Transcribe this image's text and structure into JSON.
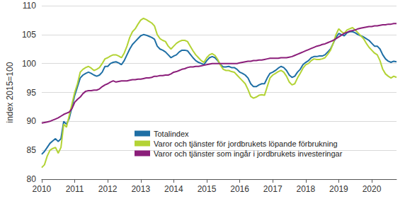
{
  "chart_data": {
    "type": "line",
    "y_label": "index 2015=100",
    "categories": [
      "2010",
      null,
      null,
      null,
      null,
      null,
      null,
      null,
      null,
      null,
      null,
      null,
      "2011",
      null,
      null,
      null,
      null,
      null,
      null,
      null,
      null,
      null,
      null,
      null,
      "2012",
      null,
      null,
      null,
      null,
      null,
      null,
      null,
      null,
      null,
      null,
      null,
      "2013",
      null,
      null,
      null,
      null,
      null,
      null,
      null,
      null,
      null,
      null,
      null,
      "2014",
      null,
      null,
      null,
      null,
      null,
      null,
      null,
      null,
      null,
      null,
      null,
      "2015",
      null,
      null,
      null,
      null,
      null,
      null,
      null,
      null,
      null,
      null,
      null,
      "2016",
      null,
      null,
      null,
      null,
      null,
      null,
      null,
      null,
      null,
      null,
      null,
      "2017",
      null,
      null,
      null,
      null,
      null,
      null,
      null,
      null,
      null,
      null,
      null,
      "2018",
      null,
      null,
      null,
      null,
      null,
      null,
      null,
      null,
      null,
      null,
      null,
      "2019",
      null,
      null,
      null,
      null,
      null,
      null,
      null,
      null,
      null,
      null,
      null,
      "2020",
      null,
      null,
      null,
      null,
      null,
      null,
      null,
      null,
      null
    ],
    "series": [
      {
        "name": "Totalindex",
        "color": "#1f6fa5",
        "values": [
          84.3,
          84.8,
          85.5,
          86.2,
          86.6,
          87.0,
          86.5,
          87.0,
          90.0,
          89.5,
          90.5,
          92.5,
          94.5,
          96,
          97.5,
          98,
          98.3,
          98.5,
          98.3,
          98,
          97.8,
          98,
          98.5,
          99.5,
          99.5,
          100,
          100.2,
          100.3,
          100.1,
          99.8,
          100.5,
          101.5,
          102.5,
          103.3,
          103.8,
          104.3,
          104.8,
          105,
          104.9,
          104.7,
          104.5,
          104.2,
          103,
          102.5,
          102.3,
          102,
          101.5,
          101,
          101.3,
          101.5,
          102,
          102.3,
          102.3,
          102.2,
          101.6,
          101,
          100.5,
          100.2,
          100,
          99.8,
          100.5,
          101,
          101.2,
          101,
          100.5,
          99.8,
          99.4,
          99.4,
          99.5,
          99.3,
          99.3,
          99.0,
          98.5,
          98.3,
          98,
          97.5,
          96.5,
          96,
          96,
          96.3,
          96.5,
          96.5,
          97.5,
          98.3,
          98.5,
          98.8,
          99.2,
          99.5,
          99.3,
          98.8,
          98,
          97.6,
          97.8,
          98.5,
          99,
          99.8,
          100.2,
          100.5,
          101,
          101.2,
          101.2,
          101.3,
          101.3,
          101.5,
          102,
          102.5,
          103.5,
          104.5,
          105.2,
          105,
          104.8,
          105.3,
          105.5,
          105.5,
          105.3,
          105,
          104.8,
          104.6,
          104.3,
          104.0,
          103.5,
          103.0,
          103.0,
          102.5,
          101.5,
          100.8,
          100.4,
          100.2,
          100.4,
          100.3
        ]
      },
      {
        "name": "Varor och tjänster för jordbrukets löpande förbrukning",
        "color": "#b3d335",
        "values": [
          82,
          82.5,
          84,
          85,
          85.3,
          85.5,
          84.5,
          85.5,
          89.5,
          89,
          91,
          93,
          95,
          96.5,
          98.5,
          99,
          99.3,
          99.5,
          99.2,
          98.8,
          99,
          99.3,
          100,
          100.8,
          101,
          101.3,
          101.5,
          101.5,
          101.3,
          101,
          101.8,
          103,
          104.5,
          105.5,
          106,
          106.8,
          107.5,
          107.8,
          107.6,
          107.3,
          107,
          106.5,
          105,
          104.3,
          104,
          103.8,
          103,
          102.5,
          103,
          103.5,
          103.8,
          104,
          104,
          103.8,
          103,
          102.2,
          101.5,
          101,
          100.5,
          100.2,
          101,
          101.5,
          101.7,
          101.4,
          100.7,
          99.7,
          99,
          98.8,
          98.8,
          98.6,
          98.5,
          98,
          97.5,
          97,
          96.5,
          95.5,
          94.3,
          94.0,
          94.2,
          94.5,
          94.6,
          94.5,
          96,
          97.5,
          98,
          98.3,
          98.6,
          98.8,
          98.5,
          97.8,
          96.8,
          96.3,
          96.5,
          97.5,
          98.3,
          99.2,
          99.8,
          100,
          100.5,
          100.8,
          100.7,
          100.7,
          100.8,
          101,
          101.6,
          102.3,
          103.5,
          105,
          106,
          105.5,
          105.2,
          105.8,
          106,
          106.2,
          105.8,
          105.3,
          104.8,
          104.3,
          103.5,
          102.8,
          102.3,
          101.8,
          101.5,
          100.5,
          99,
          98.2,
          97.8,
          97.5,
          97.8,
          97.6
        ]
      },
      {
        "name": "Varor och tjänster som ingår i jordbrukets investeringar",
        "color": "#8b1e7a",
        "values": [
          89.7,
          89.8,
          89.9,
          90,
          90.2,
          90.4,
          90.6,
          90.9,
          91.2,
          91.4,
          91.6,
          92.2,
          93.3,
          93.8,
          94.2,
          94.8,
          95.2,
          95.3,
          95.3,
          95.4,
          95.4,
          95.6,
          96,
          96.3,
          96.5,
          96.8,
          97,
          96.8,
          96.9,
          97,
          97,
          97,
          97.1,
          97.2,
          97.2,
          97.3,
          97.3,
          97.4,
          97.5,
          97.5,
          97.6,
          97.8,
          97.8,
          97.9,
          97.9,
          98,
          98,
          98.2,
          98.5,
          98.6,
          98.8,
          99,
          99.1,
          99.3,
          99.4,
          99.4,
          99.5,
          99.5,
          99.6,
          99.7,
          99.8,
          99.9,
          100,
          100,
          100,
          100,
          100,
          100,
          100,
          100,
          100,
          100,
          100.1,
          100.2,
          100.3,
          100.4,
          100.4,
          100.5,
          100.5,
          100.6,
          100.6,
          100.7,
          100.8,
          100.9,
          100.9,
          100.9,
          100.9,
          101,
          101,
          101,
          101.1,
          101.2,
          101.4,
          101.6,
          101.8,
          102,
          102.2,
          102.4,
          102.6,
          102.8,
          103,
          103.1,
          103.3,
          103.4,
          103.6,
          103.8,
          104,
          104.3,
          104.6,
          104.9,
          105.2,
          105.4,
          105.6,
          105.7,
          105.8,
          106,
          106.1,
          106.2,
          106.3,
          106.4,
          106.4,
          106.5,
          106.5,
          106.6,
          106.7,
          106.7,
          106.8,
          106.8,
          106.9,
          106.9
        ]
      }
    ],
    "ylim": [
      80,
      110
    ],
    "yticks": [
      80,
      85,
      90,
      95,
      100,
      105,
      110
    ],
    "grid": true,
    "legend": "bottom"
  }
}
